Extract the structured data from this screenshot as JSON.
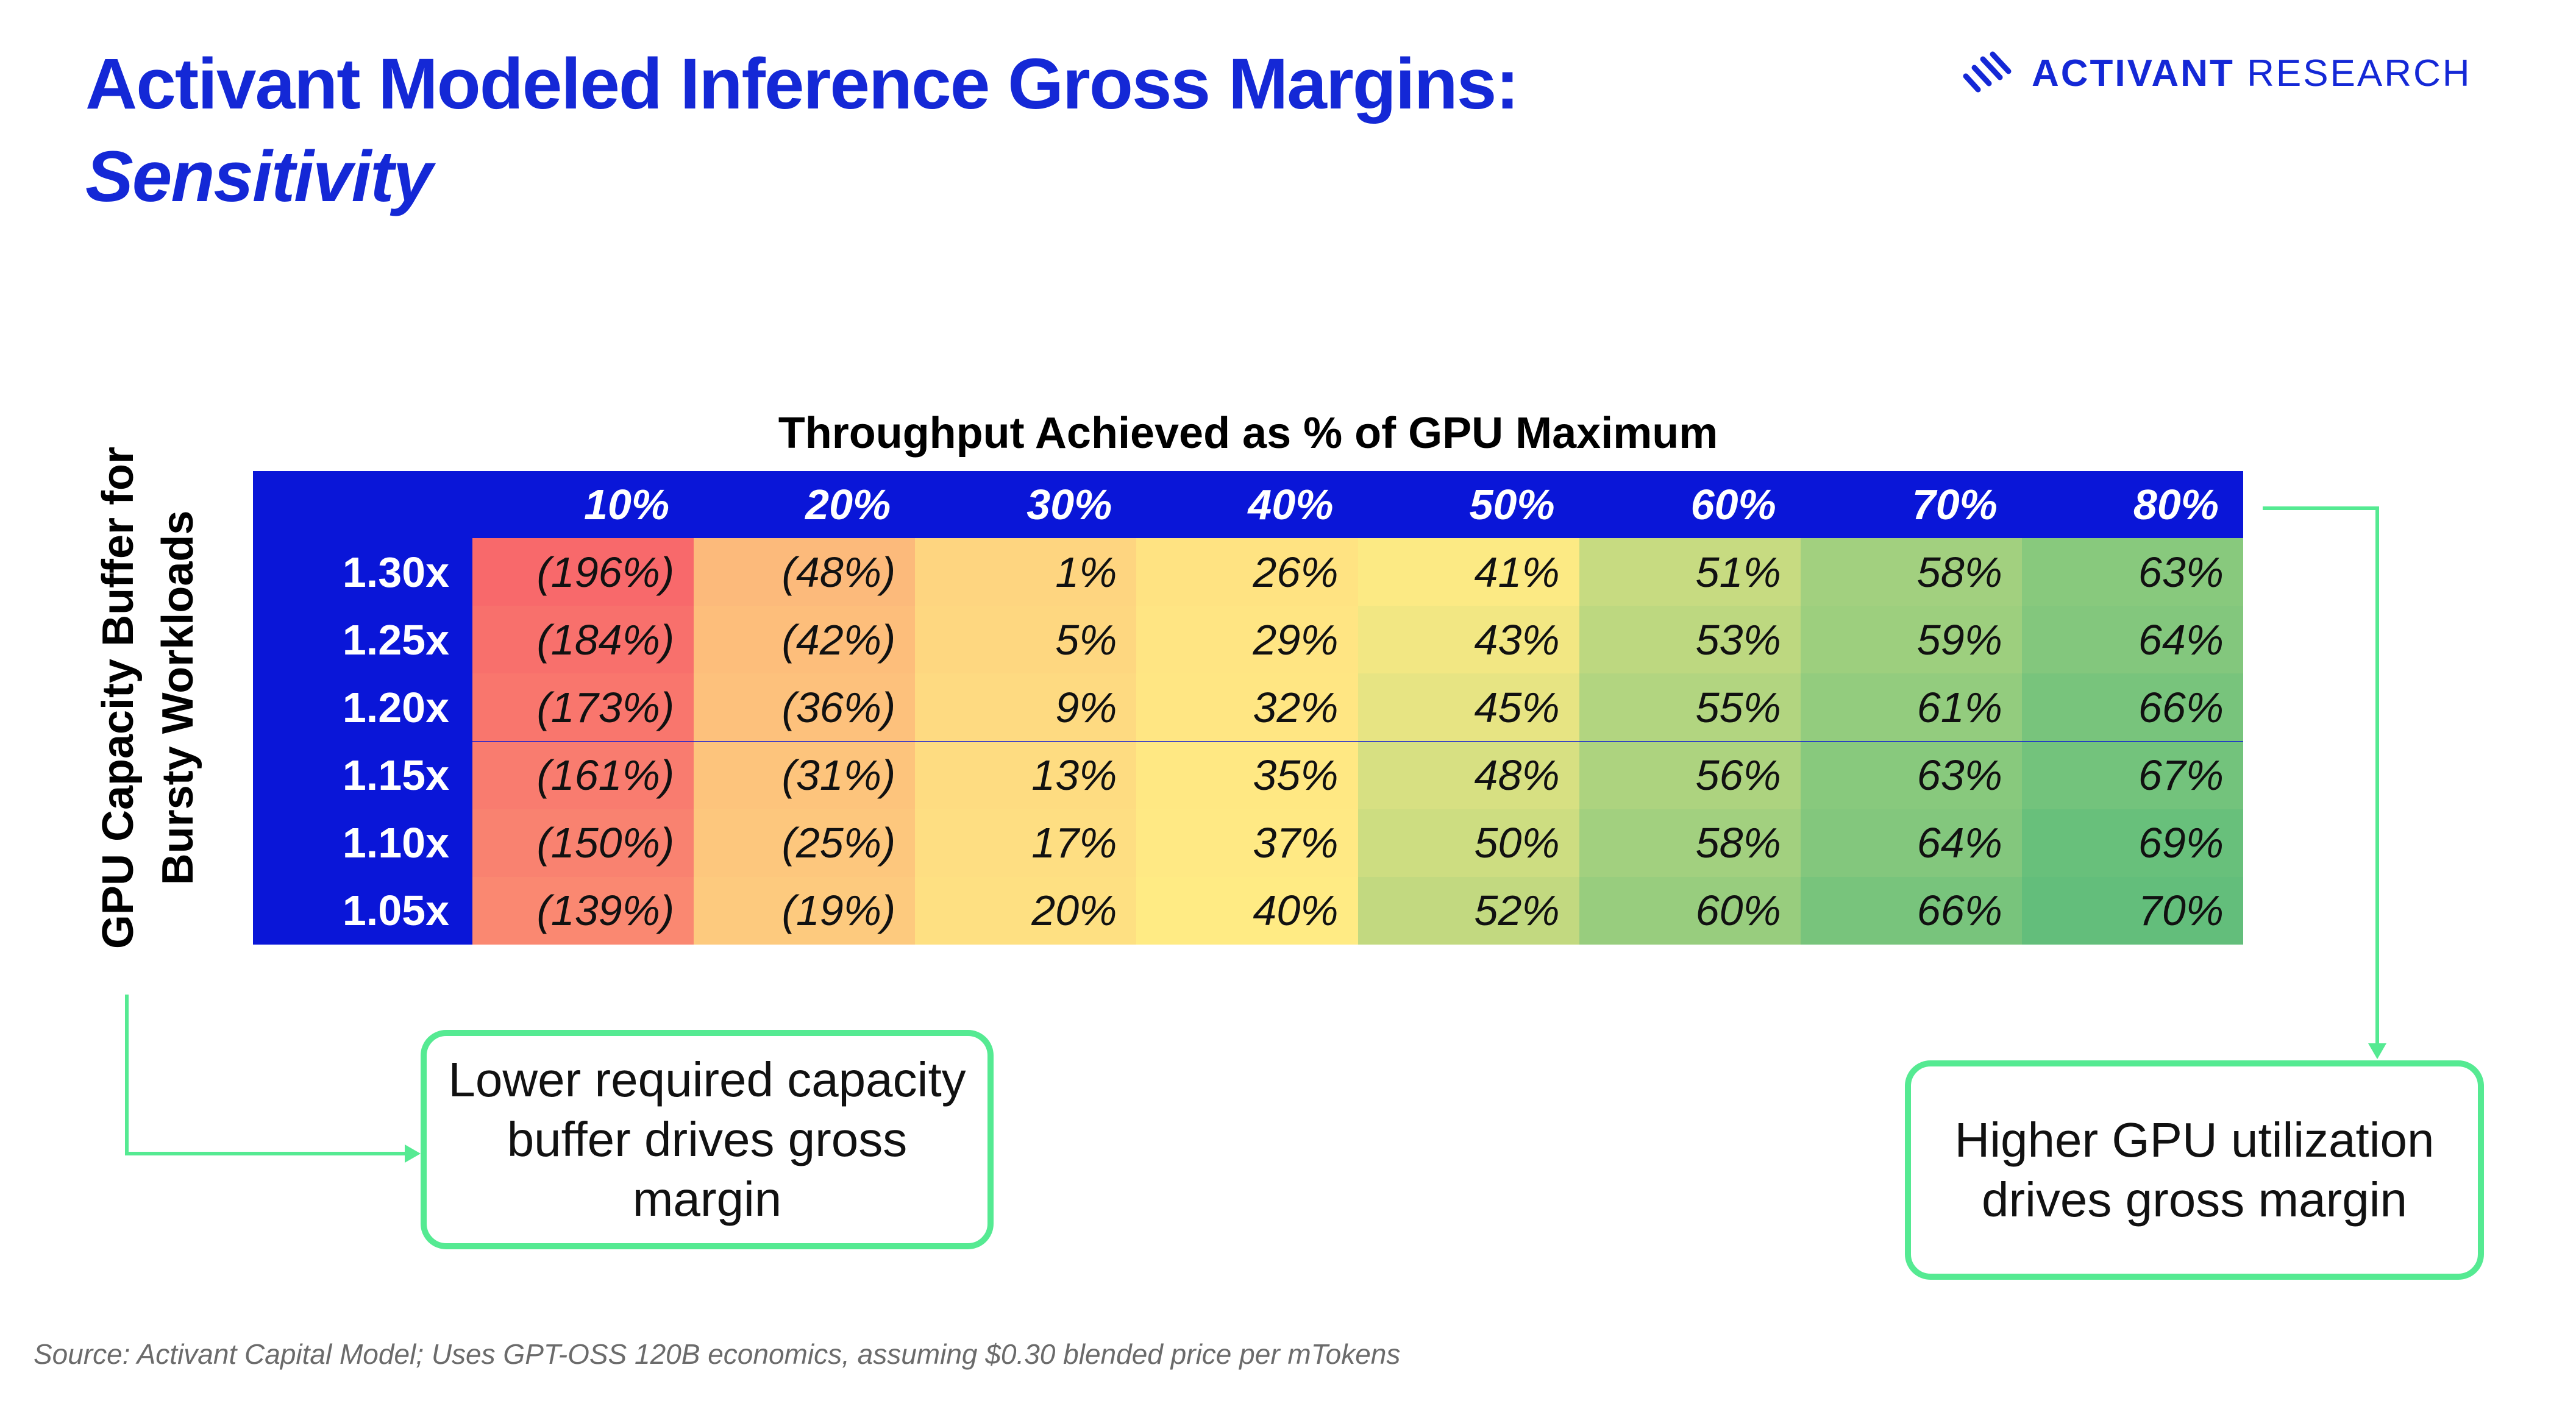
{
  "title": "Activant Modeled Inference Gross Margins:",
  "subtitle": "Sensitivity",
  "logo": {
    "text_bold": "ACTIVANT",
    "text_light": "RESEARCH"
  },
  "chart_data": {
    "type": "heatmap",
    "xlabel": "Throughput Achieved as % of GPU Maximum",
    "ylabel": "GPU Capacity Buffer for Bursty Workloads",
    "columns": [
      "10%",
      "20%",
      "30%",
      "40%",
      "50%",
      "60%",
      "70%",
      "80%"
    ],
    "rows": [
      "1.30x",
      "1.25x",
      "1.20x",
      "1.15x",
      "1.10x",
      "1.05x"
    ],
    "values": [
      [
        -196,
        -48,
        1,
        26,
        41,
        51,
        58,
        63
      ],
      [
        -184,
        -42,
        5,
        29,
        43,
        53,
        59,
        64
      ],
      [
        -173,
        -36,
        9,
        32,
        45,
        55,
        61,
        66
      ],
      [
        -161,
        -31,
        13,
        35,
        48,
        56,
        63,
        67
      ],
      [
        -150,
        -25,
        17,
        37,
        50,
        58,
        64,
        69
      ],
      [
        -139,
        -19,
        20,
        40,
        52,
        60,
        66,
        70
      ]
    ],
    "labels": [
      [
        "(196%)",
        "(48%)",
        "1%",
        "26%",
        "41%",
        "51%",
        "58%",
        "63%"
      ],
      [
        "(184%)",
        "(42%)",
        "5%",
        "29%",
        "43%",
        "53%",
        "59%",
        "64%"
      ],
      [
        "(173%)",
        "(36%)",
        "9%",
        "32%",
        "45%",
        "55%",
        "61%",
        "66%"
      ],
      [
        "(161%)",
        "(31%)",
        "13%",
        "35%",
        "48%",
        "56%",
        "63%",
        "67%"
      ],
      [
        "(150%)",
        "(25%)",
        "17%",
        "37%",
        "50%",
        "58%",
        "64%",
        "69%"
      ],
      [
        "(139%)",
        "(19%)",
        "20%",
        "40%",
        "52%",
        "60%",
        "66%",
        "70%"
      ]
    ],
    "unit": "%"
  },
  "callouts": {
    "left": "Lower required capacity buffer drives gross margin",
    "right": "Higher GPU utilization drives gross margin"
  },
  "source": "Source: Activant Capital Model; Uses GPT-OSS 120B economics, assuming $0.30 blended price per mTokens",
  "colors": {
    "title_blue": "#1428d6",
    "header_blue": "#0a16d8",
    "callout_green": "#55ea92",
    "scale_low": "#f8696b",
    "scale_mid": "#ffeb84",
    "scale_high": "#63be7b"
  }
}
